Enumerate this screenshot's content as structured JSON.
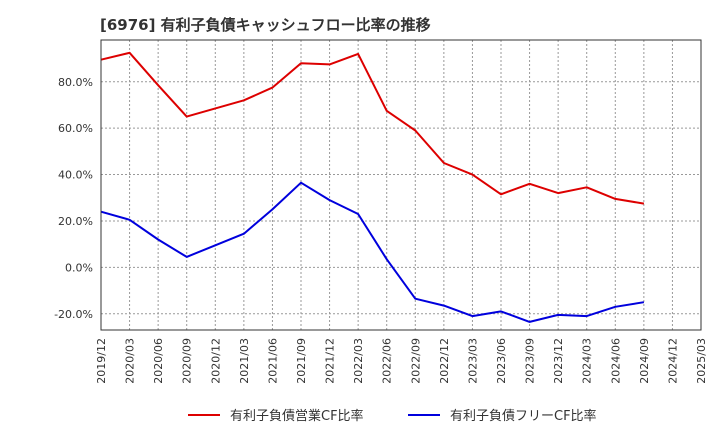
{
  "chart_data": {
    "type": "line",
    "title": "[6976]  有利子負債キャッシュフロー比率の推移",
    "x": [
      "2019/12",
      "2020/03",
      "2020/06",
      "2020/09",
      "2020/12",
      "2021/03",
      "2021/06",
      "2021/09",
      "2021/12",
      "2022/03",
      "2022/06",
      "2022/09",
      "2022/12",
      "2023/03",
      "2023/06",
      "2023/09",
      "2023/12",
      "2024/03",
      "2024/06",
      "2024/09",
      "2024/12",
      "2025/03"
    ],
    "ylim": [
      -27,
      98
    ],
    "yticks": [
      -20,
      0,
      20,
      40,
      60,
      80
    ],
    "ytick_labels": [
      "-20.0%",
      "0.0%",
      "20.0%",
      "40.0%",
      "60.0%",
      "80.0%"
    ],
    "grid": true,
    "legend_position": "bottom",
    "series": [
      {
        "name": "有利子負債営業CF比率",
        "color": "#dd0000",
        "values": [
          89.5,
          92.5,
          78.5,
          65.0,
          68.5,
          72.0,
          77.5,
          88.0,
          87.5,
          92.0,
          67.5,
          59.0,
          45.0,
          40.0,
          31.5,
          36.0,
          32.0,
          34.5,
          29.5,
          27.5,
          null,
          null
        ]
      },
      {
        "name": "有利子負債フリーCF比率",
        "color": "#0000dd",
        "values": [
          24.0,
          20.5,
          12.0,
          4.5,
          9.5,
          14.5,
          25.0,
          36.5,
          29.0,
          23.0,
          3.5,
          -13.5,
          -16.5,
          -21.0,
          -19.0,
          -23.5,
          -20.5,
          -21.0,
          -17.0,
          -15.0,
          null,
          null
        ]
      }
    ]
  }
}
